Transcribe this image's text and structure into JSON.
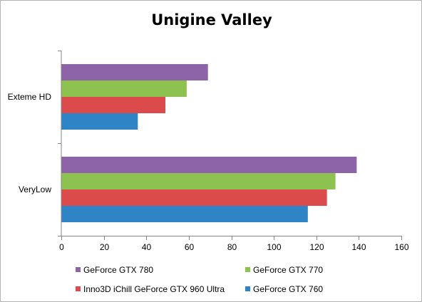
{
  "chart_data": {
    "type": "bar",
    "orientation": "horizontal",
    "title": "Unigine Valley",
    "categories": [
      "Exteme HD",
      "VeryLow"
    ],
    "series": [
      {
        "name": "GeForce GTX 780",
        "color": "#8e64a8",
        "values": [
          69,
          139
        ]
      },
      {
        "name": "GeForce GTX 770",
        "color": "#8ec250",
        "values": [
          59,
          129
        ]
      },
      {
        "name": "Inno3D iChill GeForce GTX 960 Ultra",
        "color": "#dc4b4b",
        "values": [
          49,
          125
        ]
      },
      {
        "name": "GeForce GTX 760",
        "color": "#2f84c6",
        "values": [
          36,
          116
        ]
      }
    ],
    "xlim": [
      0,
      160
    ],
    "xticks": [
      "0",
      "20",
      "40",
      "60",
      "80",
      "100",
      "120",
      "140",
      "160"
    ],
    "grid": false,
    "legend": "bottom"
  }
}
